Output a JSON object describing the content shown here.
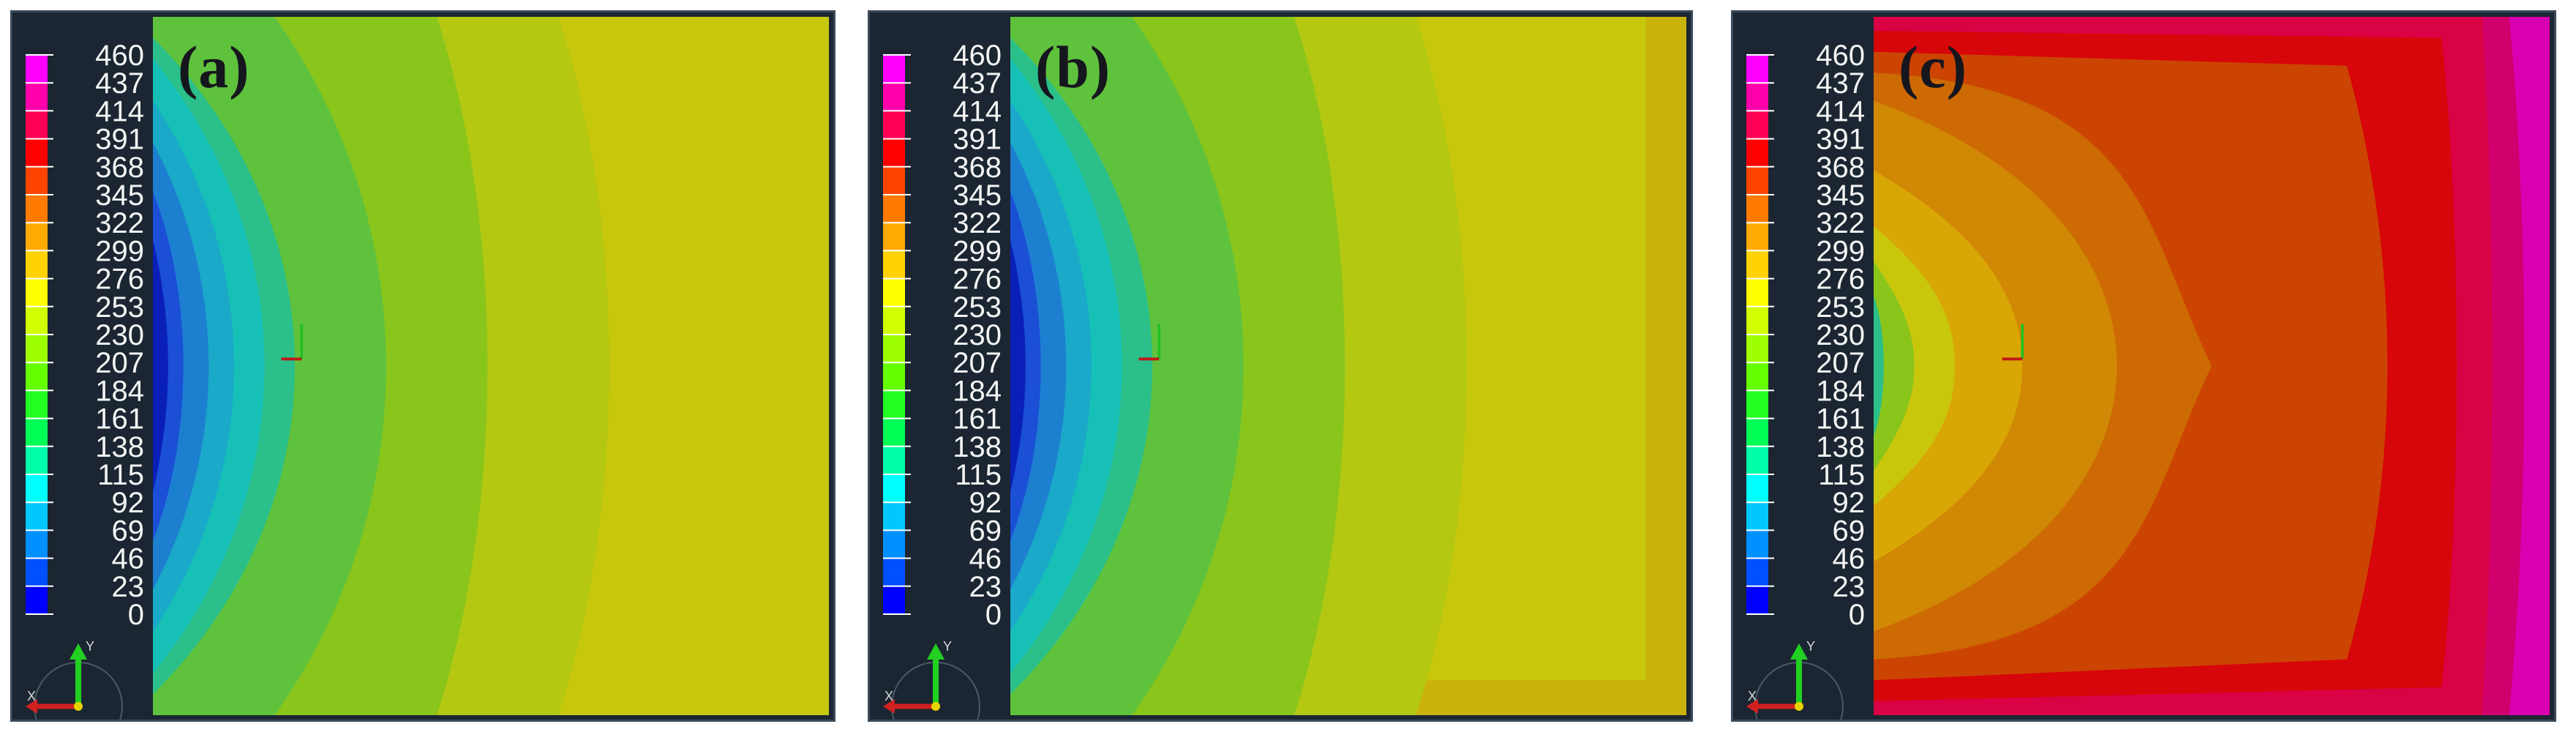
{
  "legend": {
    "ticks": [
      "460",
      "437",
      "414",
      "391",
      "368",
      "345",
      "322",
      "299",
      "276",
      "253",
      "230",
      "207",
      "184",
      "161",
      "138",
      "115",
      "92",
      "69",
      "46",
      "23",
      "0"
    ],
    "colors": [
      "#ff00ff",
      "#ff00aa",
      "#ff0055",
      "#ff0000",
      "#ff4400",
      "#ff7a00",
      "#ffaa00",
      "#ffd200",
      "#ffff00",
      "#d2ff00",
      "#9eff00",
      "#66ff00",
      "#22ff22",
      "#00ff55",
      "#00ffaa",
      "#00ffff",
      "#00c8ff",
      "#0090ff",
      "#0050ff",
      "#0000ff"
    ]
  },
  "panels": [
    {
      "label": "(a)"
    },
    {
      "label": "(b)"
    },
    {
      "label": "(c)"
    }
  ],
  "triad": {
    "x": "X",
    "y": "Y"
  },
  "colors": {
    "panel_bg": "#1b2632",
    "field_a": [
      "#0a1fb8",
      "#1a4fd6",
      "#1d7fd0",
      "#1aa9c9",
      "#16c0b7",
      "#2bbf8a",
      "#5fc23d",
      "#8ac51c",
      "#b4c812",
      "#c7c70c"
    ],
    "field_c": [
      "#c9c70c",
      "#d9a705",
      "#d18805",
      "#cd6a03",
      "#cc4402",
      "#d6060a",
      "#d80244",
      "#d0006c",
      "#d800b0"
    ]
  }
}
